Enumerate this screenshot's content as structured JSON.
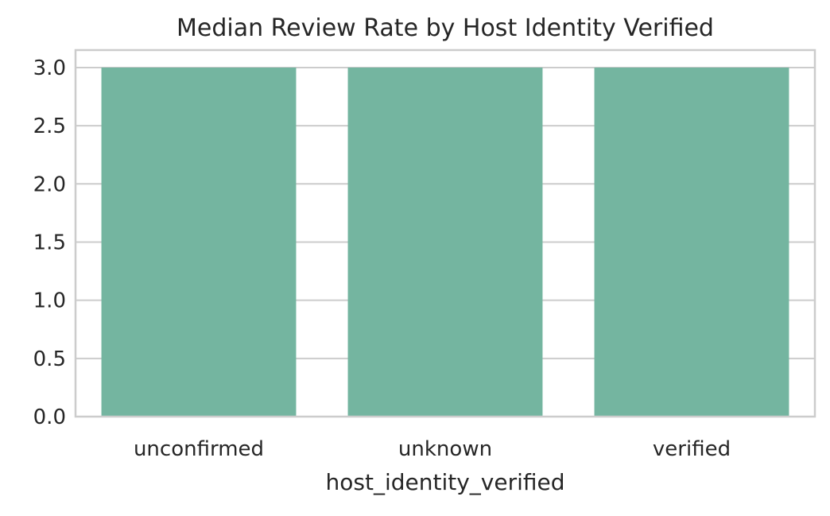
{
  "chart_data": {
    "type": "bar",
    "title": "Median Review Rate by Host Identity Verified",
    "xlabel": "host_identity_verified",
    "ylabel": "",
    "categories": [
      "unconfirmed",
      "unknown",
      "verified"
    ],
    "values": [
      3.0,
      3.0,
      3.0
    ],
    "ylim": [
      0,
      3.15
    ],
    "yticks": [
      "0.0",
      "0.5",
      "1.0",
      "1.5",
      "2.0",
      "2.5",
      "3.0"
    ],
    "grid": true,
    "colors": {
      "bar": "#74b5a0",
      "grid": "#cccccc",
      "spine": "#cccccc",
      "text": "#262626"
    }
  }
}
